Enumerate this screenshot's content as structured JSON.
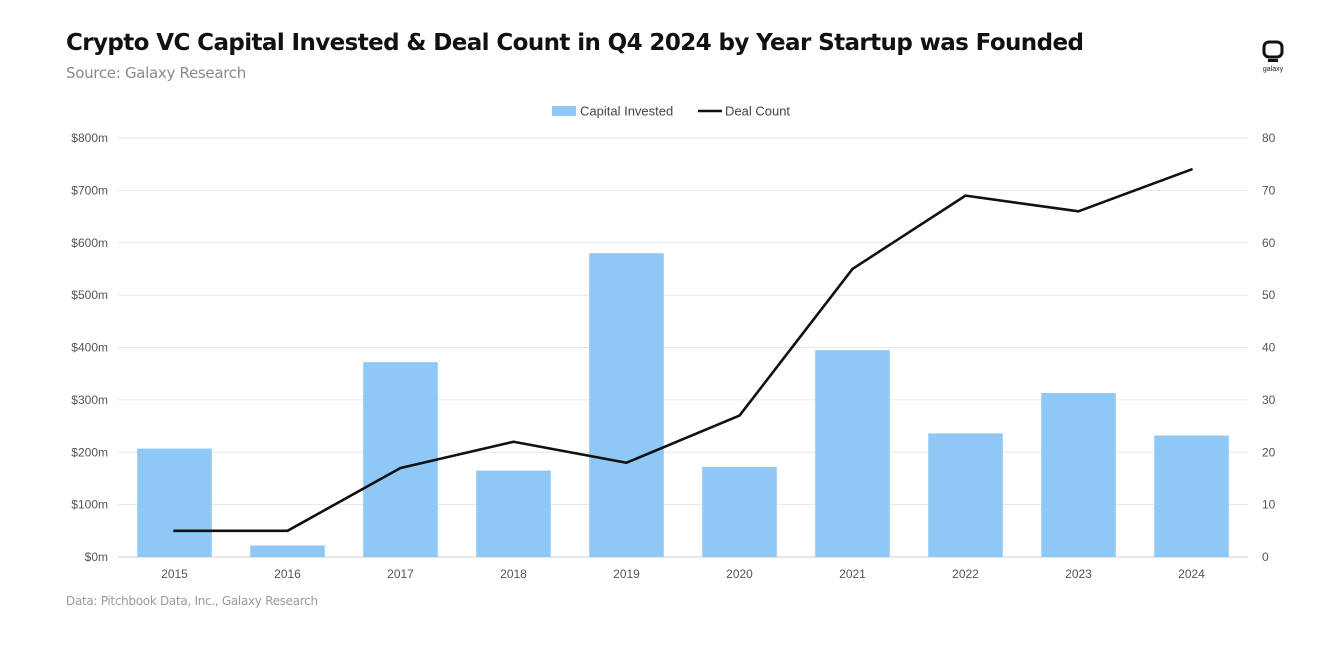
{
  "header": {
    "title": "Crypto VC Capital Invested & Deal Count in Q4 2024 by Year Startup was Founded",
    "subtitle": "Source: Galaxy Research"
  },
  "logo": {
    "text": "galaxy"
  },
  "footer": {
    "note": "Data: Pitchbook Data, Inc., Galaxy Research"
  },
  "colors": {
    "bar": "#8fc8f5",
    "line": "#111111",
    "grid": "#e6e6e6"
  },
  "chart_data": {
    "type": "bar",
    "title": "Crypto VC Capital Invested & Deal Count in Q4 2024 by Year Startup was Founded",
    "subtitle": "Source: Galaxy Research",
    "categories": [
      "2015",
      "2016",
      "2017",
      "2018",
      "2019",
      "2020",
      "2021",
      "2022",
      "2023",
      "2024"
    ],
    "series": [
      {
        "name": "Capital Invested",
        "type": "bar",
        "axis": "left",
        "values": [
          207,
          22,
          372,
          165,
          580,
          172,
          395,
          236,
          313,
          232
        ]
      },
      {
        "name": "Deal Count",
        "type": "line",
        "axis": "right",
        "values": [
          5,
          5,
          17,
          22,
          18,
          27,
          55,
          69,
          66,
          74
        ]
      }
    ],
    "left_axis": {
      "ylim": [
        0,
        800
      ],
      "ticks": [
        0,
        100,
        200,
        300,
        400,
        500,
        600,
        700,
        800
      ],
      "tick_labels": [
        "$0m",
        "$100m",
        "$200m",
        "$300m",
        "$400m",
        "$500m",
        "$600m",
        "$700m",
        "$800m"
      ]
    },
    "right_axis": {
      "ylim": [
        0,
        80
      ],
      "ticks": [
        0,
        10,
        20,
        30,
        40,
        50,
        60,
        70,
        80
      ],
      "tick_labels": [
        "0",
        "10",
        "20",
        "30",
        "40",
        "50",
        "60",
        "70",
        "80"
      ]
    },
    "grid": true,
    "legend": "top-center"
  }
}
